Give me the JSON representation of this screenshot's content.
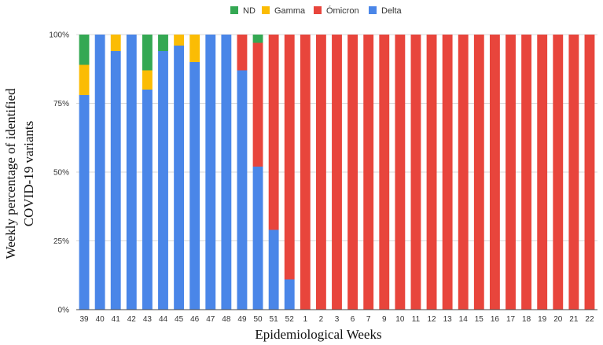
{
  "chart_data": {
    "type": "bar",
    "stacked": true,
    "percent": true,
    "xlabel": "Epidemiological  Weeks",
    "ylabel_lines": [
      "Weekly percentage of identified",
      "COVID-19 variants"
    ],
    "ylim": [
      0,
      100
    ],
    "yticks": [
      0,
      25,
      50,
      75,
      100
    ],
    "ytick_labels": [
      "0%",
      "25%",
      "50%",
      "75%",
      "100%"
    ],
    "legend_position": "top-center",
    "categories": [
      "39",
      "40",
      "41",
      "42",
      "43",
      "44",
      "45",
      "46",
      "47",
      "48",
      "49",
      "50",
      "51",
      "52",
      "1",
      "2",
      "3",
      "6",
      "7",
      "9",
      "10",
      "11",
      "12",
      "13",
      "14",
      "15",
      "16",
      "17",
      "18",
      "19",
      "20",
      "21",
      "22"
    ],
    "series": [
      {
        "name": "Delta",
        "color": "#4a86e8",
        "values": [
          78,
          100,
          94,
          100,
          80,
          94,
          96,
          90,
          100,
          100,
          87,
          52,
          29,
          11,
          0,
          0,
          0,
          0,
          0,
          0,
          0,
          0,
          0,
          0,
          0,
          0,
          0,
          0,
          0,
          0,
          0,
          0,
          0
        ]
      },
      {
        "name": "Ómicron",
        "color": "#e8453c",
        "values": [
          0,
          0,
          0,
          0,
          0,
          0,
          0,
          0,
          0,
          0,
          13,
          45,
          71,
          89,
          100,
          100,
          100,
          100,
          100,
          100,
          100,
          100,
          100,
          100,
          100,
          100,
          100,
          100,
          100,
          100,
          100,
          100,
          100
        ]
      },
      {
        "name": "Gamma",
        "color": "#fbbc04",
        "values": [
          11,
          0,
          6,
          0,
          7,
          0,
          4,
          10,
          0,
          0,
          0,
          0,
          0,
          0,
          0,
          0,
          0,
          0,
          0,
          0,
          0,
          0,
          0,
          0,
          0,
          0,
          0,
          0,
          0,
          0,
          0,
          0,
          0
        ]
      },
      {
        "name": "ND",
        "color": "#34a853",
        "values": [
          11,
          0,
          0,
          0,
          13,
          6,
          0,
          0,
          0,
          0,
          0,
          3,
          0,
          0,
          0,
          0,
          0,
          0,
          0,
          0,
          0,
          0,
          0,
          0,
          0,
          0,
          0,
          0,
          0,
          0,
          0,
          0,
          0
        ]
      }
    ],
    "legend_order": [
      "ND",
      "Gamma",
      "Ómicron",
      "Delta"
    ]
  },
  "colors": {
    "gridline": "#d9d9d9",
    "axis": "#444444"
  }
}
